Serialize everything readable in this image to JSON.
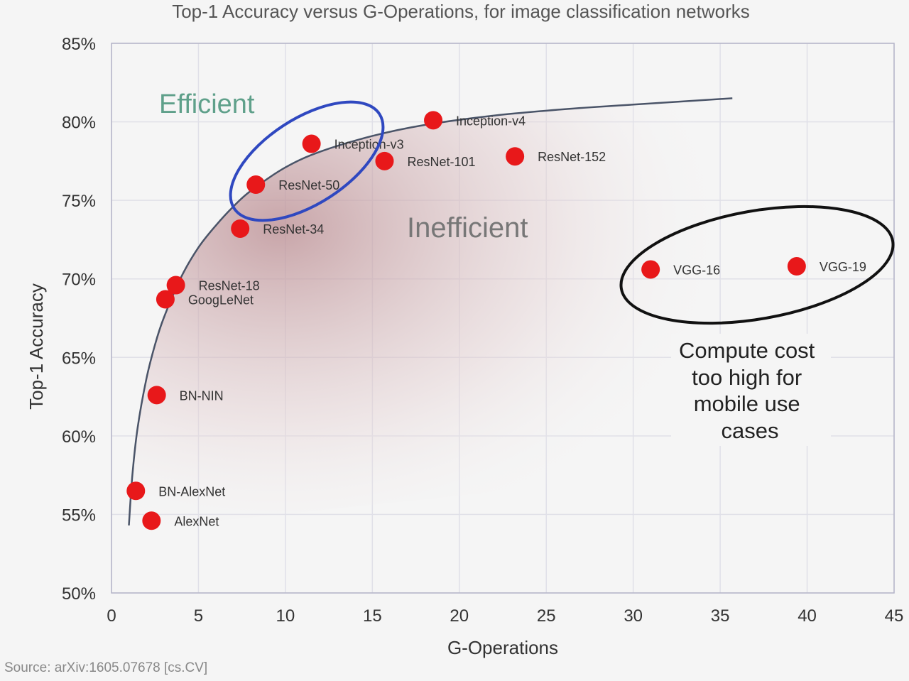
{
  "chart_data": {
    "type": "scatter",
    "title": "Top-1 Accuracy versus G-Operations, for image classification networks",
    "xlabel": "G-Operations",
    "ylabel": "Top-1 Accuracy",
    "xlim": [
      0,
      45
    ],
    "ylim": [
      50,
      85
    ],
    "x_ticks": [
      "0",
      "5",
      "10",
      "15",
      "20",
      "25",
      "30",
      "35",
      "40",
      "45"
    ],
    "y_ticks": [
      "50%",
      "55%",
      "60%",
      "65%",
      "70%",
      "75%",
      "80%",
      "85%"
    ],
    "grid": true,
    "point_color": "#e8181a",
    "points": [
      {
        "label": "AlexNet",
        "x": 2.3,
        "y": 54.6
      },
      {
        "label": "BN-AlexNet",
        "x": 1.4,
        "y": 56.5
      },
      {
        "label": "BN-NIN",
        "x": 2.6,
        "y": 62.6
      },
      {
        "label": "GoogLeNet",
        "x": 3.1,
        "y": 68.7
      },
      {
        "label": "ResNet-18",
        "x": 3.7,
        "y": 69.6
      },
      {
        "label": "ResNet-34",
        "x": 7.4,
        "y": 73.2
      },
      {
        "label": "ResNet-50",
        "x": 8.3,
        "y": 76.0
      },
      {
        "label": "Inception-v3",
        "x": 11.5,
        "y": 78.6
      },
      {
        "label": "ResNet-101",
        "x": 15.7,
        "y": 77.5
      },
      {
        "label": "Inception-v4",
        "x": 18.5,
        "y": 80.1
      },
      {
        "label": "ResNet-152",
        "x": 23.2,
        "y": 77.8
      },
      {
        "label": "VGG-16",
        "x": 31.0,
        "y": 70.6
      },
      {
        "label": "VGG-19",
        "x": 39.4,
        "y": 70.8
      }
    ],
    "frontier_curve": [
      [
        1.0,
        54.3
      ],
      [
        1.2,
        57.5
      ],
      [
        1.5,
        60.5
      ],
      [
        2,
        63.6
      ],
      [
        2.5,
        65.8
      ],
      [
        3,
        67.5
      ],
      [
        4,
        70.1
      ],
      [
        5,
        72.0
      ],
      [
        6,
        73.4
      ],
      [
        7,
        74.6
      ],
      [
        8,
        75.6
      ],
      [
        10,
        77.1
      ],
      [
        12,
        78.1
      ],
      [
        15,
        79.1
      ],
      [
        18,
        79.8
      ],
      [
        22,
        80.4
      ],
      [
        26,
        80.8
      ],
      [
        30,
        81.1
      ],
      [
        35.7,
        81.5
      ]
    ],
    "annotations": {
      "efficient": "Efficient",
      "efficient_color": "#5fa08a",
      "inefficient": "Inefficient",
      "compute_cost": [
        "Compute cost",
        "too high for",
        "mobile use",
        "cases"
      ],
      "highlight_color": "#2f48c0"
    }
  },
  "source": "Source: arXiv:1605.07678 [cs.CV]"
}
